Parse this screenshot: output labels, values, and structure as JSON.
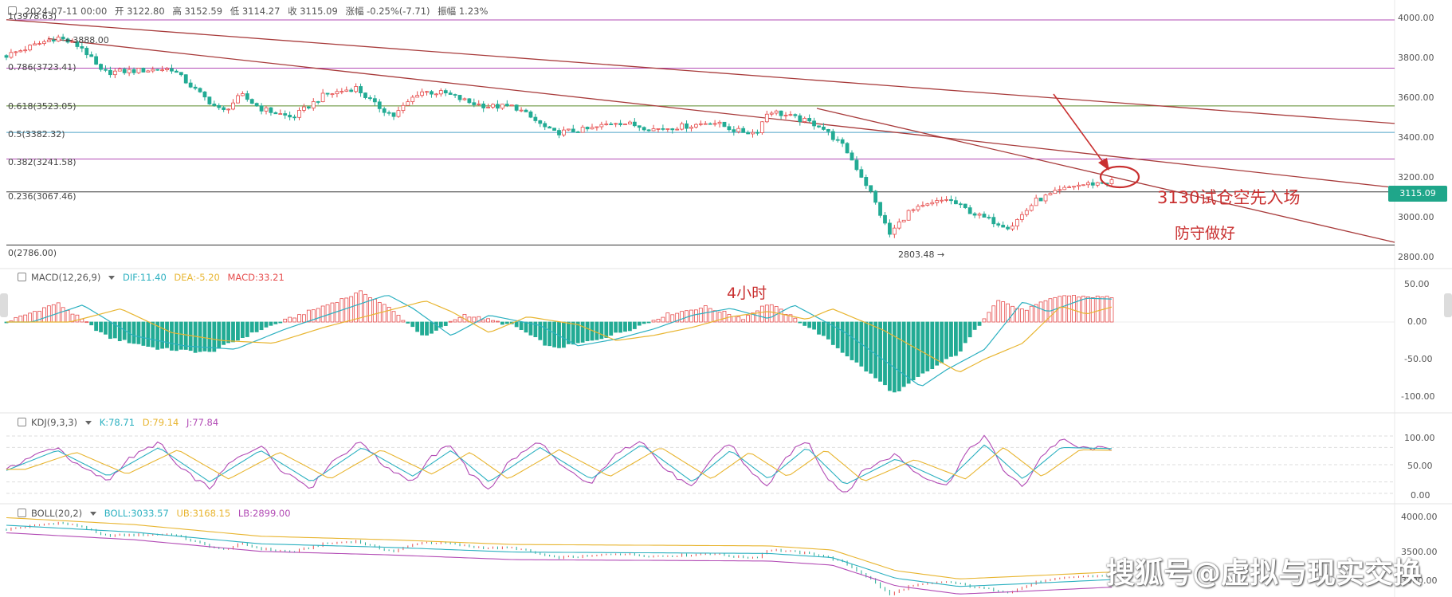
{
  "header": {
    "date": "2024-07-11 00:00",
    "open": "开 3122.80",
    "high": "高 3152.59",
    "low": "低 3114.27",
    "close": "收 3115.09",
    "change": "涨幅 -0.25%(-7.71)",
    "amplitude": "振幅 1.23%"
  },
  "price_label": "3115.09",
  "high_marker": "3888.00",
  "low_marker": "2803.48",
  "fib_levels": [
    {
      "label": "1(3978.63)",
      "value": 3978.63
    },
    {
      "label": "0.786(3723.41)",
      "value": 3723.41
    },
    {
      "label": "0.618(3523.05)",
      "value": 3523.05
    },
    {
      "label": "0.5(3382.32)",
      "value": 3382.32
    },
    {
      "label": "0.382(3241.58)",
      "value": 3241.58
    },
    {
      "label": "0.236(3067.46)",
      "value": 3067.46
    },
    {
      "label": "0(2786.00)",
      "value": 2786.0
    }
  ],
  "price_ticks": [
    "4000.00",
    "3800.00",
    "3600.00",
    "3400.00",
    "3200.00",
    "3000.00",
    "2800.00"
  ],
  "annotations": {
    "entry": "3130试仓空先入场",
    "defend": "防守做好",
    "timeframe": "4小时"
  },
  "macd": {
    "title": "MACD(12,26,9)",
    "dif": "DIF:11.40",
    "dea": "DEA:-5.20",
    "macd": "MACD:33.21",
    "ticks": [
      "50.00",
      "0.00",
      "-50.00",
      "-100.00"
    ]
  },
  "kdj": {
    "title": "KDJ(9,3,3)",
    "k": "K:78.71",
    "d": "D:79.14",
    "j": "J:77.84",
    "ticks": [
      "100.00",
      "50.00",
      "0.00"
    ]
  },
  "boll": {
    "title": "BOLL(20,2)",
    "mid": "BOLL:3033.57",
    "ub": "UB:3168.15",
    "lb": "LB:2899.00",
    "ticks": [
      "4000.00",
      "3500.00",
      "3000.00"
    ]
  },
  "watermark": "搜狐号@虚拟与现实交换",
  "colors": {
    "up": "#e64c4c",
    "down": "#22ab94",
    "dif": "#2bb0c0",
    "dea": "#e8b530",
    "j": "#b24bb5",
    "ub": "#e8b530",
    "lb": "#b24bb5",
    "trendline": "#a83b3b",
    "annotation": "#c93030"
  },
  "chart_data": {
    "type": "candlestick",
    "x_range": [
      0,
      1
    ],
    "ylim": [
      2740,
      4030
    ],
    "anchors": [
      [
        0.0,
        3790
      ],
      [
        0.04,
        3888
      ],
      [
        0.06,
        3830
      ],
      [
        0.075,
        3700
      ],
      [
        0.13,
        3720
      ],
      [
        0.15,
        3600
      ],
      [
        0.17,
        3490
      ],
      [
        0.185,
        3580
      ],
      [
        0.2,
        3510
      ],
      [
        0.225,
        3460
      ],
      [
        0.25,
        3580
      ],
      [
        0.275,
        3620
      ],
      [
        0.29,
        3530
      ],
      [
        0.305,
        3470
      ],
      [
        0.325,
        3600
      ],
      [
        0.345,
        3590
      ],
      [
        0.365,
        3540
      ],
      [
        0.38,
        3520
      ],
      [
        0.4,
        3520
      ],
      [
        0.43,
        3380
      ],
      [
        0.46,
        3400
      ],
      [
        0.48,
        3440
      ],
      [
        0.51,
        3400
      ],
      [
        0.54,
        3420
      ],
      [
        0.555,
        3440
      ],
      [
        0.575,
        3390
      ],
      [
        0.59,
        3380
      ],
      [
        0.6,
        3500
      ],
      [
        0.625,
        3450
      ],
      [
        0.64,
        3420
      ],
      [
        0.66,
        3300
      ],
      [
        0.68,
        3070
      ],
      [
        0.695,
        2840
      ],
      [
        0.71,
        2960
      ],
      [
        0.74,
        3030
      ],
      [
        0.765,
        2940
      ],
      [
        0.79,
        2880
      ],
      [
        0.81,
        3020
      ],
      [
        0.84,
        3100
      ],
      [
        0.87,
        3122
      ]
    ],
    "macd_anchors": [
      [
        0.0,
        0
      ],
      [
        0.04,
        25
      ],
      [
        0.08,
        -20
      ],
      [
        0.12,
        -35
      ],
      [
        0.16,
        -40
      ],
      [
        0.2,
        -10
      ],
      [
        0.24,
        15
      ],
      [
        0.28,
        40
      ],
      [
        0.3,
        20
      ],
      [
        0.33,
        -20
      ],
      [
        0.36,
        10
      ],
      [
        0.4,
        -5
      ],
      [
        0.43,
        -35
      ],
      [
        0.46,
        -25
      ],
      [
        0.49,
        -10
      ],
      [
        0.52,
        10
      ],
      [
        0.55,
        20
      ],
      [
        0.58,
        5
      ],
      [
        0.6,
        25
      ],
      [
        0.64,
        -15
      ],
      [
        0.67,
        -55
      ],
      [
        0.7,
        -95
      ],
      [
        0.72,
        -70
      ],
      [
        0.75,
        -40
      ],
      [
        0.78,
        30
      ],
      [
        0.8,
        15
      ],
      [
        0.83,
        35
      ],
      [
        0.86,
        33
      ]
    ],
    "kdj_anchors": [
      [
        0.0,
        40
      ],
      [
        0.04,
        75
      ],
      [
        0.08,
        30
      ],
      [
        0.12,
        80
      ],
      [
        0.16,
        20
      ],
      [
        0.2,
        75
      ],
      [
        0.24,
        20
      ],
      [
        0.28,
        80
      ],
      [
        0.32,
        30
      ],
      [
        0.35,
        75
      ],
      [
        0.38,
        20
      ],
      [
        0.42,
        80
      ],
      [
        0.46,
        25
      ],
      [
        0.5,
        85
      ],
      [
        0.54,
        20
      ],
      [
        0.57,
        75
      ],
      [
        0.6,
        25
      ],
      [
        0.63,
        80
      ],
      [
        0.66,
        15
      ],
      [
        0.7,
        60
      ],
      [
        0.74,
        20
      ],
      [
        0.77,
        85
      ],
      [
        0.8,
        25
      ],
      [
        0.83,
        80
      ],
      [
        0.87,
        78
      ]
    ],
    "boll_anchors": [
      [
        0.0,
        3850
      ],
      [
        0.1,
        3750
      ],
      [
        0.2,
        3580
      ],
      [
        0.3,
        3530
      ],
      [
        0.4,
        3460
      ],
      [
        0.5,
        3450
      ],
      [
        0.6,
        3440
      ],
      [
        0.65,
        3380
      ],
      [
        0.7,
        3080
      ],
      [
        0.75,
        2960
      ],
      [
        0.8,
        3000
      ],
      [
        0.87,
        3060
      ]
    ]
  }
}
